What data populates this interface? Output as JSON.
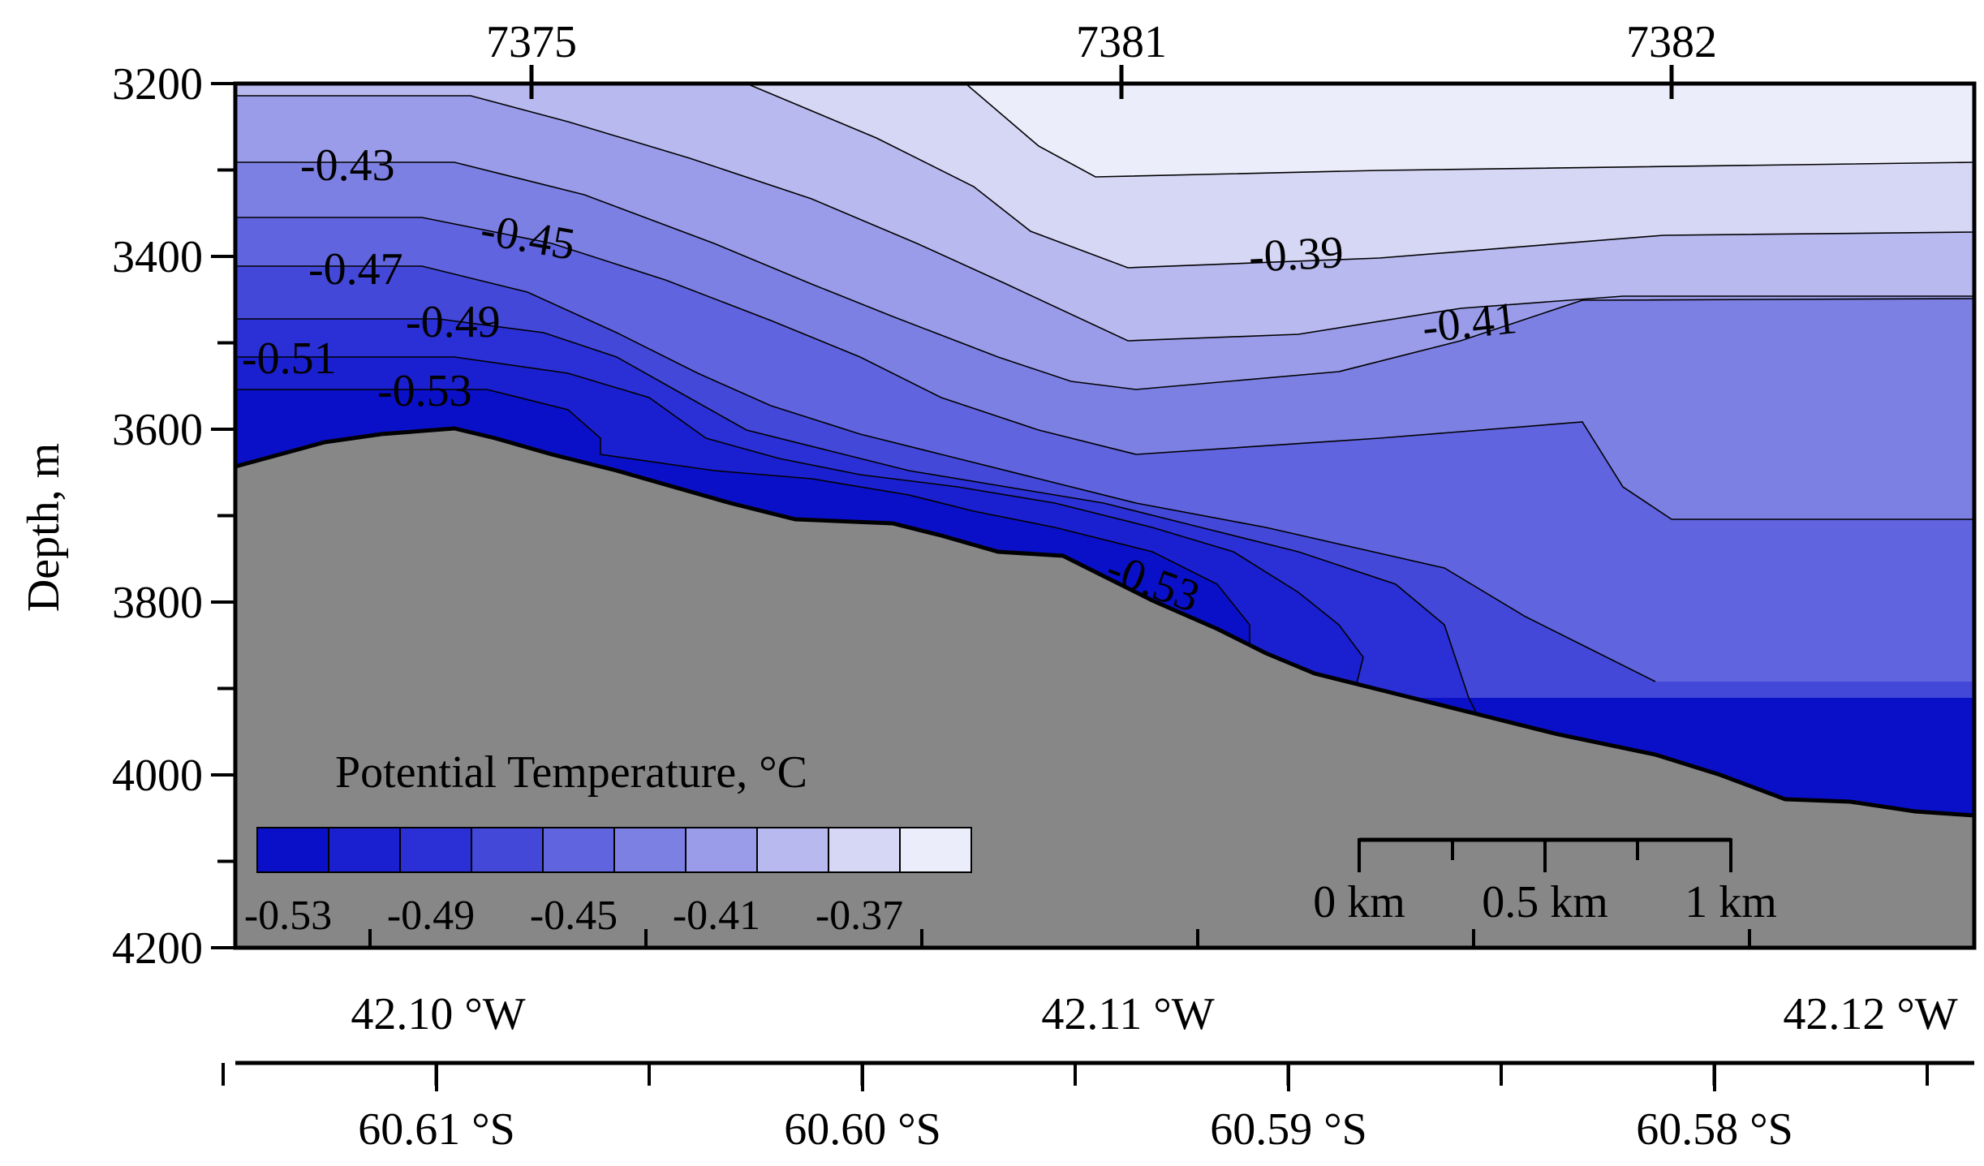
{
  "chart_data": {
    "type": "contour",
    "title": "",
    "variable_label": "Potential Temperature, °C",
    "ylabel": "Depth, m",
    "ylim": [
      4200,
      3200
    ],
    "yticks": [
      "3200",
      "3400",
      "3600",
      "3800",
      "4000",
      "4200"
    ],
    "stations": [
      "7375",
      "7381",
      "7382"
    ],
    "longitude_ticks": [
      "42.10 °W",
      "42.11 °W",
      "42.12 °W"
    ],
    "latitude_ticks": [
      "60.61 °S",
      "60.60 °S",
      "60.59 °S",
      "60.58 °S"
    ],
    "contour_levels": [
      -0.53,
      -0.51,
      -0.49,
      -0.47,
      -0.45,
      -0.43,
      -0.41,
      -0.39,
      -0.37
    ],
    "contour_labels": [
      "-0.43",
      "-0.45",
      "-0.47",
      "-0.49",
      "-0.51",
      "-0.53",
      "-0.39",
      "-0.41",
      "-0.53"
    ],
    "colorbar": {
      "colors": [
        "#0a10c8",
        "#1a1fd0",
        "#2a2fd6",
        "#4348d9",
        "#6064de",
        "#7d80e3",
        "#9a9ce9",
        "#b8b9ef",
        "#d6d6f5",
        "#ecedfb"
      ],
      "tick_labels": [
        "-0.53",
        "-0.49",
        "-0.45",
        "-0.41",
        "-0.37"
      ]
    },
    "scale_bar": {
      "labels": [
        "0 km",
        "0.5 km",
        "1 km"
      ]
    },
    "seafloor_color": "#878787"
  }
}
